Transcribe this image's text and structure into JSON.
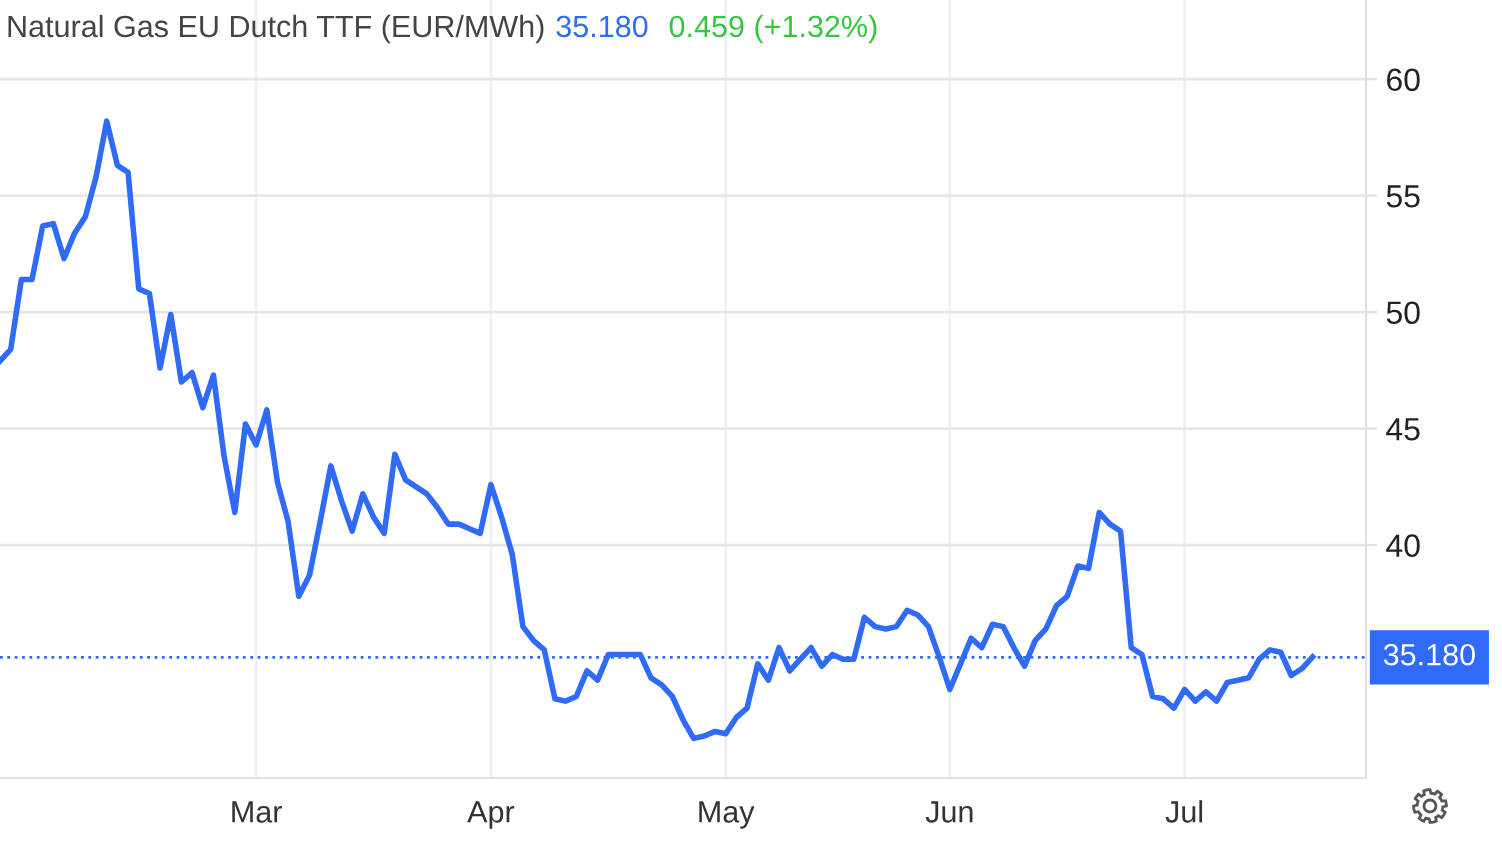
{
  "chart_data": {
    "type": "line",
    "title": "Natural Gas EU Dutch TTF (EUR/MWh)",
    "annotations": [
      "35.180",
      "0.459 (+1.32%)"
    ],
    "categories": [
      null,
      null,
      null,
      null,
      null,
      null,
      null,
      null,
      null,
      null,
      null,
      null,
      null,
      null,
      null,
      null,
      null,
      null,
      null,
      null,
      null,
      null,
      null,
      null,
      "Mar",
      null,
      null,
      null,
      null,
      null,
      null,
      null,
      null,
      null,
      null,
      null,
      null,
      null,
      null,
      null,
      null,
      null,
      null,
      null,
      null,
      null,
      "Apr",
      null,
      null,
      null,
      null,
      null,
      null,
      null,
      null,
      null,
      null,
      null,
      null,
      null,
      null,
      null,
      null,
      null,
      null,
      null,
      null,
      null,
      "May",
      null,
      null,
      null,
      null,
      null,
      null,
      null,
      null,
      null,
      null,
      null,
      null,
      null,
      null,
      null,
      null,
      null,
      null,
      null,
      null,
      "Jun",
      null,
      null,
      null,
      null,
      null,
      null,
      null,
      null,
      null,
      null,
      null,
      null,
      null,
      null,
      null,
      null,
      null,
      null,
      null,
      null,
      null,
      "Jul",
      null,
      null,
      null,
      null,
      null,
      null,
      null,
      null,
      null,
      null,
      null,
      null,
      null,
      null,
      null,
      null,
      null
    ],
    "series": [
      {
        "color": "#2f6af8",
        "values": [
          47.9,
          48.4,
          51.4,
          51.4,
          53.7,
          53.8,
          52.3,
          53.4,
          54.1,
          55.8,
          58.2,
          56.3,
          56.0,
          51.0,
          50.8,
          47.6,
          49.9,
          47.0,
          47.4,
          45.9,
          47.3,
          43.8,
          41.4,
          45.2,
          44.3,
          45.8,
          42.7,
          41.0,
          37.8,
          38.7,
          41.0,
          43.4,
          41.9,
          40.6,
          42.2,
          41.2,
          40.5,
          43.9,
          42.8,
          42.5,
          42.2,
          41.6,
          40.9,
          40.9,
          40.7,
          40.5,
          42.6,
          41.2,
          39.6,
          36.5,
          35.9,
          35.5,
          33.4,
          33.3,
          33.5,
          34.6,
          34.2,
          35.3,
          35.3,
          35.3,
          35.3,
          34.3,
          34.0,
          33.5,
          32.5,
          31.7,
          31.8,
          32.0,
          31.9,
          32.6,
          33.0,
          34.9,
          34.2,
          35.6,
          34.6,
          35.1,
          35.6,
          34.8,
          35.3,
          35.1,
          35.1,
          36.9,
          36.5,
          36.4,
          36.5,
          37.2,
          37.0,
          36.5,
          35.2,
          33.8,
          34.9,
          36.0,
          35.6,
          36.6,
          36.5,
          35.6,
          34.8,
          35.9,
          36.4,
          37.4,
          37.8,
          39.1,
          39.0,
          41.4,
          40.9,
          40.6,
          35.6,
          35.3,
          33.5,
          33.4,
          33.0,
          33.8,
          33.3,
          33.7,
          33.3,
          34.1,
          34.2,
          34.3,
          35.1,
          35.5,
          35.4,
          34.4,
          34.7,
          35.2,
          null,
          null,
          null,
          null,
          null
        ]
      }
    ],
    "ylim": [
      30,
      63.4
    ],
    "yticks": [
      40,
      45,
      50,
      55,
      60
    ],
    "grid": true,
    "ref_lines": [
      {
        "axis": "y",
        "value": 35.18,
        "label": "35.180",
        "color": "#2f6af8",
        "line_style": "dotted"
      }
    ]
  }
}
